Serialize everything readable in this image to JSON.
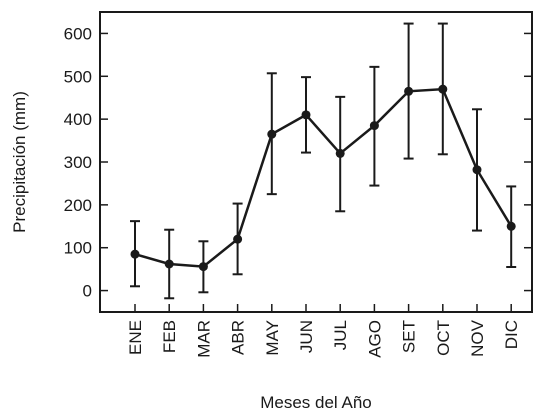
{
  "chart_data": {
    "type": "line",
    "title": "",
    "xlabel": "Meses del Año",
    "ylabel": "Precipitación (mm)",
    "categories": [
      "ENE",
      "FEB",
      "MAR",
      "ABR",
      "MAY",
      "JUN",
      "JUL",
      "AGO",
      "SET",
      "OCT",
      "NOV",
      "DIC"
    ],
    "series": [
      {
        "values": [
          85,
          62,
          56,
          120,
          365,
          410,
          320,
          385,
          465,
          470,
          282,
          150
        ],
        "err_low": [
          10,
          -18,
          -4,
          38,
          225,
          322,
          185,
          245,
          308,
          318,
          140,
          55
        ],
        "err_high": [
          162,
          142,
          115,
          203,
          507,
          498,
          452,
          522,
          623,
          623,
          423,
          243
        ]
      }
    ],
    "ylim": [
      -50,
      650
    ],
    "yticks": [
      0,
      100,
      200,
      300,
      400,
      500,
      600
    ],
    "ytick_labels": [
      "0",
      "100",
      "200",
      "300",
      "400",
      "500",
      "600"
    ],
    "grid": false,
    "colors": {
      "line": "#1a1a1a",
      "marker": "#1a1a1a",
      "axis": "#1a1a1a"
    }
  }
}
